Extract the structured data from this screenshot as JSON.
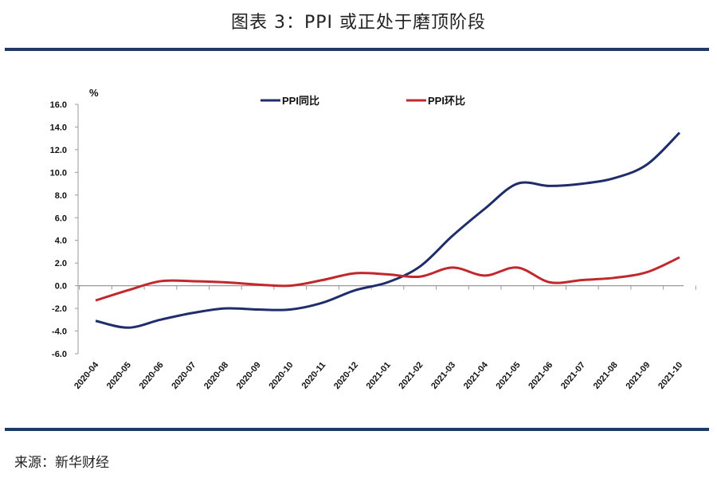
{
  "header": {
    "title": "图表 3：PPI 或正处于磨顶阶段"
  },
  "footer": {
    "source": "来源：新华财经"
  },
  "colors": {
    "rule": "#1f3b63",
    "yoy": "#1f2d6b",
    "mom": "#c0282d",
    "axis": "#999999"
  },
  "chart_data": {
    "type": "line",
    "title": "PPI 或正处于磨顶阶段",
    "ylabel": "%",
    "ylim": [
      -6,
      16
    ],
    "yticks": [
      "16.0",
      "14.0",
      "12.0",
      "10.0",
      "8.0",
      "6.0",
      "4.0",
      "2.0",
      "0.0",
      "-2.0",
      "-4.0",
      "-6.0"
    ],
    "ytick_values": [
      16,
      14,
      12,
      10,
      8,
      6,
      4,
      2,
      0,
      -2,
      -4,
      -6
    ],
    "legend_position": "top-center",
    "categories": [
      "2020-04",
      "2020-05",
      "2020-06",
      "2020-07",
      "2020-08",
      "2020-09",
      "2020-10",
      "2020-11",
      "2020-12",
      "2021-01",
      "2021-02",
      "2021-03",
      "2021-04",
      "2021-05",
      "2021-06",
      "2021-07",
      "2021-08",
      "2021-09",
      "2021-10"
    ],
    "series": [
      {
        "name": "PPI同比",
        "values": [
          -3.1,
          -3.7,
          -3.0,
          -2.4,
          -2.0,
          -2.1,
          -2.1,
          -1.5,
          -0.4,
          0.3,
          1.7,
          4.4,
          6.8,
          9.0,
          8.8,
          9.0,
          9.5,
          10.7,
          13.5
        ]
      },
      {
        "name": "PPI环比",
        "values": [
          -1.3,
          -0.4,
          0.4,
          0.4,
          0.3,
          0.1,
          0.0,
          0.5,
          1.1,
          1.0,
          0.8,
          1.6,
          0.9,
          1.6,
          0.3,
          0.5,
          0.7,
          1.2,
          2.5
        ]
      }
    ]
  }
}
